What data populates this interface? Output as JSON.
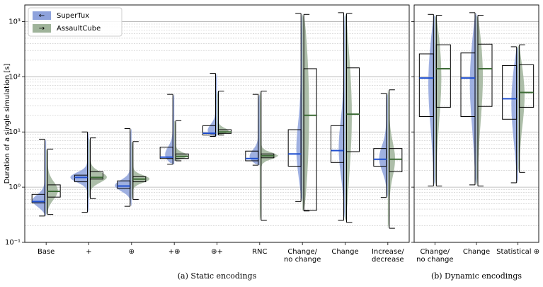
{
  "chart_data": [
    {
      "type": "violin",
      "ylabel": "Duration of a single simulation [s]",
      "caption": "(a) Static encodings",
      "categories": [
        [
          "Base"
        ],
        [
          "+"
        ],
        [
          "⊕"
        ],
        [
          "+⊕"
        ],
        [
          "⊕+"
        ],
        [
          "RNC"
        ],
        [
          "Change/",
          "no change"
        ],
        [
          "Change"
        ],
        [
          "Increase/",
          "decrease"
        ]
      ],
      "log_scale": true,
      "grid": true,
      "legend": "upper left",
      "ylim": [
        0.1,
        2000
      ],
      "yticks": [
        {
          "value": 0.1,
          "label": "10⁻¹"
        },
        {
          "value": 1,
          "label": "10⁰"
        },
        {
          "value": 10,
          "label": "10¹"
        },
        {
          "value": 100,
          "label": "10²"
        },
        {
          "value": 1000,
          "label": "10³"
        }
      ],
      "yminorticks": [
        0.2,
        0.3,
        0.4,
        0.5,
        0.6,
        0.7,
        0.8,
        0.9,
        2,
        3,
        4,
        5,
        6,
        7,
        8,
        9,
        20,
        30,
        40,
        50,
        60,
        70,
        80,
        90,
        200,
        300,
        400,
        500,
        600,
        700,
        800,
        900
      ],
      "series": [
        {
          "name": "SuperTux",
          "legend_symbol": "←",
          "color": "#8ea2dc",
          "median_color": "#1f4fd0",
          "whisker_low": [
            0.3,
            0.35,
            0.45,
            2.6,
            8.3,
            2.5,
            0.55,
            0.25,
            0.65
          ],
          "q1": [
            0.52,
            1.25,
            0.95,
            3.3,
            8.8,
            3.0,
            2.4,
            2.8,
            2.4
          ],
          "median": [
            0.55,
            1.5,
            1.05,
            3.5,
            9.5,
            3.3,
            4.0,
            4.6,
            3.2
          ],
          "q3": [
            0.74,
            1.65,
            1.3,
            5.3,
            13,
            4.5,
            11,
            13,
            5
          ],
          "whisker_high": [
            7.4,
            10,
            11.5,
            48,
            115,
            48,
            1400,
            1450,
            50
          ]
        },
        {
          "name": "AssaultCube",
          "legend_symbol": "→",
          "color": "#9fb39a",
          "median_color": "#3d6b36",
          "whisker_low": [
            0.32,
            0.62,
            0.6,
            3.0,
            8.8,
            0.25,
            0.37,
            0.23,
            0.18
          ],
          "q1": [
            0.66,
            1.4,
            1.25,
            3.3,
            9.4,
            3.4,
            0.38,
            4.4,
            1.9
          ],
          "median": [
            0.84,
            1.5,
            1.4,
            3.6,
            10,
            3.7,
            20,
            21,
            3.2
          ],
          "q3": [
            1.1,
            1.9,
            1.55,
            4.0,
            11,
            4.0,
            140,
            145,
            5
          ],
          "whisker_high": [
            4.9,
            7.8,
            6.7,
            16,
            55,
            55,
            1350,
            1400,
            58
          ]
        }
      ]
    },
    {
      "type": "violin",
      "caption": "(b) Dynamic encodings",
      "categories": [
        [
          "Change/",
          "no change"
        ],
        [
          "Change"
        ],
        [
          "Statistical ⊕"
        ]
      ],
      "log_scale": true,
      "grid": true,
      "ylim": [
        0.1,
        2000
      ],
      "yticks": [
        0.1,
        1,
        10,
        100,
        1000
      ],
      "yminorticks": [
        0.2,
        0.3,
        0.4,
        0.5,
        0.6,
        0.7,
        0.8,
        0.9,
        2,
        3,
        4,
        5,
        6,
        7,
        8,
        9,
        20,
        30,
        40,
        50,
        60,
        70,
        80,
        90,
        200,
        300,
        400,
        500,
        600,
        700,
        800,
        900
      ],
      "series": [
        {
          "color": "#8ea2dc",
          "median_color": "#1f4fd0",
          "whisker_low": [
            1.05,
            1.1,
            1.2
          ],
          "q1": [
            19,
            19,
            17
          ],
          "median": [
            95,
            95,
            40
          ],
          "q3": [
            260,
            270,
            160
          ],
          "whisker_high": [
            1350,
            1450,
            350
          ]
        },
        {
          "color": "#9fb39a",
          "median_color": "#3d6b36",
          "whisker_low": [
            1.05,
            1.05,
            1.85
          ],
          "q1": [
            28,
            29,
            28
          ],
          "median": [
            140,
            140,
            52
          ],
          "q3": [
            380,
            390,
            165
          ],
          "whisker_high": [
            1300,
            1300,
            380
          ]
        }
      ]
    }
  ]
}
